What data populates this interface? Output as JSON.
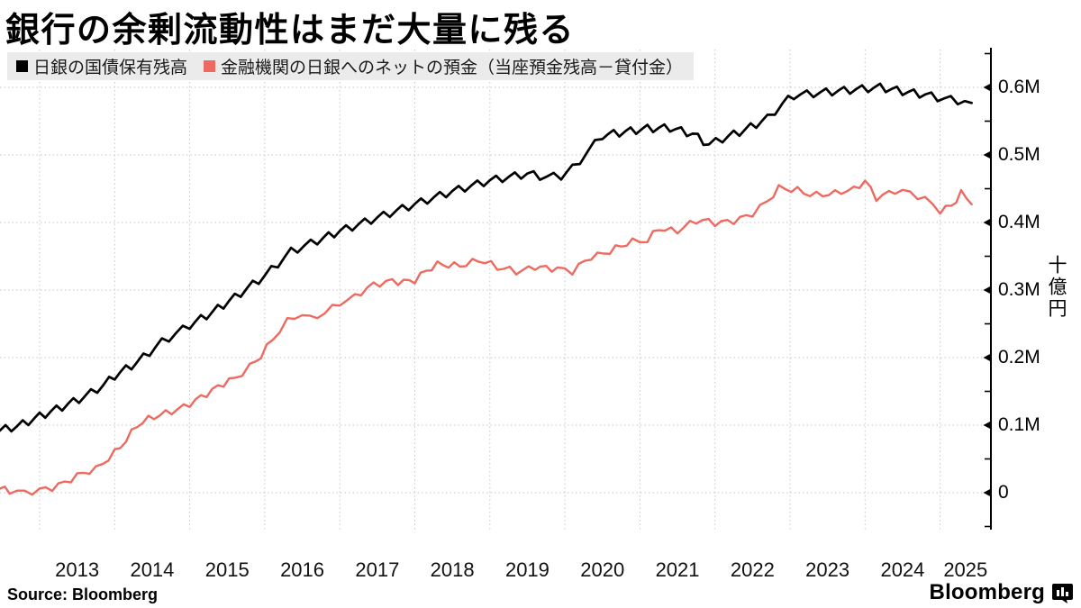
{
  "title": "銀行の余剰流動性はまだ大量に残る",
  "legend": {
    "items": [
      {
        "label": "日銀の国債保有残高",
        "color": "#000000"
      },
      {
        "label": "金融機関の日銀へのネットの預金（当座預金残高－貸付金）",
        "color": "#ee6a60"
      }
    ]
  },
  "source": "Source:  Bloomberg",
  "branding": {
    "wordmark": "Bloomberg",
    "icon": "bloomberg-bar-chart-bubble"
  },
  "chart_data": {
    "type": "line",
    "title": "銀行の余剰流動性はまだ大量に残る",
    "unit": "十億円 (billions of yen), M = million billions",
    "x_axis": {
      "tick_years": [
        "2013",
        "2014",
        "2015",
        "2016",
        "2017",
        "2018",
        "2019",
        "2020",
        "2021",
        "2022",
        "2023",
        "2024",
        "2025"
      ],
      "range_year_fraction": [
        2012.47,
        2025.68
      ],
      "gridlines": "dotted-vertical-at-january"
    },
    "y_axis": {
      "side": "right",
      "unit_label": "十億円",
      "ticks": [
        {
          "label": "0.6M",
          "value": 0.6
        },
        {
          "label": "0.5M",
          "value": 0.5
        },
        {
          "label": "0.4M",
          "value": 0.4
        },
        {
          "label": "0.3M",
          "value": 0.3
        },
        {
          "label": "0.2M",
          "value": 0.2
        },
        {
          "label": "0.1M",
          "value": 0.1
        },
        {
          "label": "0",
          "value": 0.0
        }
      ],
      "minor_tick_values": [
        -0.05,
        0.05,
        0.15,
        0.25,
        0.35,
        0.45,
        0.55,
        0.65
      ],
      "range": [
        -0.055,
        0.66
      ],
      "gridlines": "dotted-horizontal"
    },
    "series": [
      {
        "name": "日銀の国債保有残高",
        "color": "#000000",
        "texture": "sawtooth",
        "points": [
          [
            2012.47,
            0.092
          ],
          [
            2012.7,
            0.097
          ],
          [
            2013.0,
            0.112
          ],
          [
            2013.3,
            0.126
          ],
          [
            2013.6,
            0.141
          ],
          [
            2013.85,
            0.158
          ],
          [
            2014.0,
            0.172
          ],
          [
            2014.3,
            0.192
          ],
          [
            2014.63,
            0.222
          ],
          [
            2015.0,
            0.247
          ],
          [
            2015.3,
            0.266
          ],
          [
            2015.6,
            0.288
          ],
          [
            2016.0,
            0.32
          ],
          [
            2016.35,
            0.356
          ],
          [
            2016.7,
            0.372
          ],
          [
            2017.0,
            0.386
          ],
          [
            2017.5,
            0.406
          ],
          [
            2018.0,
            0.426
          ],
          [
            2018.5,
            0.445
          ],
          [
            2019.0,
            0.461
          ],
          [
            2019.5,
            0.471
          ],
          [
            2019.75,
            0.466
          ],
          [
            2019.95,
            0.468
          ],
          [
            2020.1,
            0.479
          ],
          [
            2020.3,
            0.503
          ],
          [
            2020.5,
            0.528
          ],
          [
            2020.8,
            0.533
          ],
          [
            2021.1,
            0.538
          ],
          [
            2021.4,
            0.539
          ],
          [
            2021.7,
            0.53
          ],
          [
            2021.92,
            0.514
          ],
          [
            2022.1,
            0.523
          ],
          [
            2022.4,
            0.536
          ],
          [
            2022.7,
            0.553
          ],
          [
            2022.9,
            0.575
          ],
          [
            2023.05,
            0.587
          ],
          [
            2023.4,
            0.591
          ],
          [
            2023.8,
            0.595
          ],
          [
            2024.2,
            0.599
          ],
          [
            2024.5,
            0.593
          ],
          [
            2024.8,
            0.588
          ],
          [
            2025.05,
            0.582
          ],
          [
            2025.42,
            0.577
          ]
        ]
      },
      {
        "name": "金融機関の日銀へのネットの預金（当座預金残高－貸付金）",
        "color": "#ee6a60",
        "texture": "noise",
        "points": [
          [
            2012.47,
            0.006
          ],
          [
            2012.6,
            0.0
          ],
          [
            2012.8,
            -0.003
          ],
          [
            2013.0,
            0.005
          ],
          [
            2013.25,
            0.014
          ],
          [
            2013.5,
            0.023
          ],
          [
            2013.75,
            0.032
          ],
          [
            2014.0,
            0.062
          ],
          [
            2014.3,
            0.1
          ],
          [
            2014.6,
            0.112
          ],
          [
            2015.0,
            0.135
          ],
          [
            2015.3,
            0.148
          ],
          [
            2015.6,
            0.17
          ],
          [
            2015.8,
            0.19
          ],
          [
            2015.95,
            0.205
          ],
          [
            2016.1,
            0.225
          ],
          [
            2016.3,
            0.25
          ],
          [
            2016.5,
            0.264
          ],
          [
            2016.6,
            0.258
          ],
          [
            2016.8,
            0.27
          ],
          [
            2017.0,
            0.283
          ],
          [
            2017.2,
            0.288
          ],
          [
            2017.45,
            0.305
          ],
          [
            2017.7,
            0.316
          ],
          [
            2018.0,
            0.315
          ],
          [
            2018.3,
            0.335
          ],
          [
            2018.6,
            0.34
          ],
          [
            2018.85,
            0.345
          ],
          [
            2019.1,
            0.33
          ],
          [
            2019.35,
            0.328
          ],
          [
            2019.6,
            0.338
          ],
          [
            2019.9,
            0.328
          ],
          [
            2020.1,
            0.325
          ],
          [
            2020.35,
            0.352
          ],
          [
            2020.6,
            0.36
          ],
          [
            2020.9,
            0.368
          ],
          [
            2021.1,
            0.372
          ],
          [
            2021.25,
            0.394
          ],
          [
            2021.5,
            0.39
          ],
          [
            2021.75,
            0.4
          ],
          [
            2022.0,
            0.398
          ],
          [
            2022.25,
            0.406
          ],
          [
            2022.5,
            0.414
          ],
          [
            2022.7,
            0.428
          ],
          [
            2022.85,
            0.448
          ],
          [
            2023.1,
            0.45
          ],
          [
            2023.35,
            0.443
          ],
          [
            2023.6,
            0.44
          ],
          [
            2023.85,
            0.447
          ],
          [
            2024.0,
            0.464
          ],
          [
            2024.15,
            0.44
          ],
          [
            2024.4,
            0.446
          ],
          [
            2024.6,
            0.44
          ],
          [
            2024.8,
            0.433
          ],
          [
            2025.0,
            0.42
          ],
          [
            2025.15,
            0.428
          ],
          [
            2025.28,
            0.444
          ],
          [
            2025.42,
            0.427
          ]
        ]
      }
    ]
  }
}
